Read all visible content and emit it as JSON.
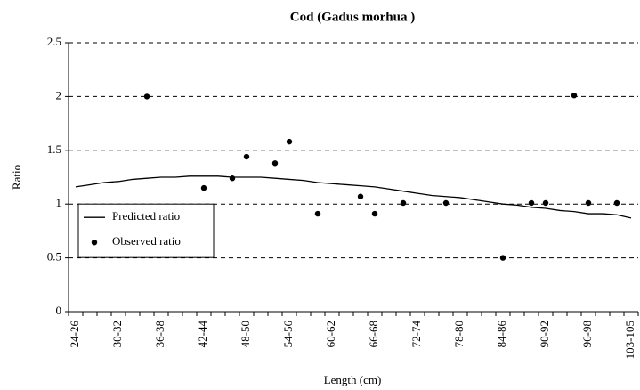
{
  "chart_data": {
    "type": "line",
    "title": "Cod (Gadus morhua )",
    "x_label": "Length (cm)",
    "y_label": "Ratio",
    "categories": [
      "24-26",
      null,
      null,
      "30-32",
      null,
      null,
      "36-38",
      null,
      null,
      "42-44",
      null,
      null,
      "48-50",
      null,
      null,
      "54-56",
      null,
      null,
      "60-62",
      null,
      null,
      "66-68",
      null,
      null,
      "72-74",
      null,
      null,
      "78-80",
      null,
      null,
      "84-86",
      null,
      null,
      "90-92",
      null,
      null,
      "96-98",
      null,
      null,
      "103-105"
    ],
    "series": [
      {
        "name": "Predicted ratio",
        "color": "#000000",
        "style": "line",
        "values": [
          1.16,
          1.18,
          1.2,
          1.21,
          1.23,
          1.24,
          1.25,
          1.25,
          1.26,
          1.26,
          1.26,
          1.25,
          1.25,
          1.25,
          1.24,
          1.23,
          1.22,
          1.2,
          1.19,
          1.18,
          1.17,
          1.16,
          1.14,
          1.12,
          1.1,
          1.08,
          1.07,
          1.06,
          1.04,
          1.02,
          1.0,
          0.99,
          0.97,
          0.96,
          0.94,
          0.93,
          0.91,
          0.91,
          0.9,
          0.87
        ]
      },
      {
        "name": "Observed ratio",
        "color": "#000000",
        "style": "marker",
        "values": [
          null,
          null,
          null,
          null,
          null,
          2.0,
          null,
          null,
          null,
          1.15,
          null,
          1.24,
          1.44,
          null,
          1.38,
          1.58,
          null,
          0.91,
          null,
          null,
          1.07,
          0.91,
          null,
          1.01,
          null,
          null,
          1.01,
          null,
          null,
          null,
          0.5,
          null,
          1.01,
          1.01,
          null,
          2.01,
          1.01,
          null,
          1.01,
          null
        ]
      }
    ],
    "ylim": [
      0,
      2.5
    ],
    "yticks": [
      0,
      0.5,
      1,
      1.5,
      2,
      2.5
    ],
    "grid": true,
    "legend": "lower left"
  }
}
